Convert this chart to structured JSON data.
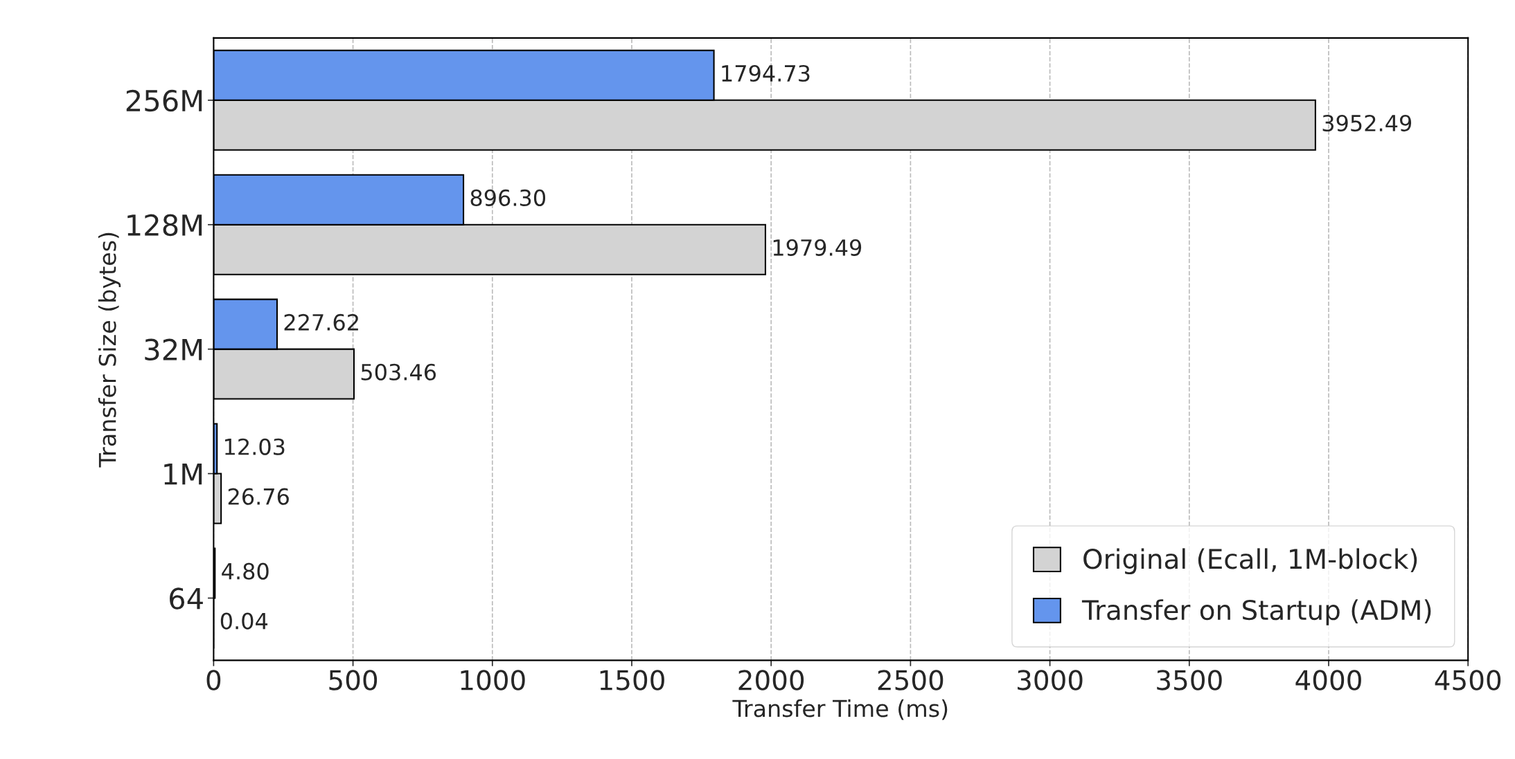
{
  "chart_data": {
    "type": "bar",
    "orientation": "horizontal",
    "xlabel": "Transfer Time (ms)",
    "ylabel": "Transfer Size (bytes)",
    "categories": [
      "256M",
      "128M",
      "32M",
      "1M",
      "64"
    ],
    "series": [
      {
        "name": "Original (Ecall, 1M-block)",
        "color": "#d3d3d3",
        "values": [
          3952.49,
          1979.49,
          503.46,
          26.76,
          0.04
        ],
        "value_labels": [
          "3952.49",
          "1979.49",
          "503.46",
          "26.76",
          "0.04"
        ]
      },
      {
        "name": "Transfer on Startup (ADM)",
        "color": "#6495ed",
        "values": [
          1794.73,
          896.3,
          227.62,
          12.03,
          4.8
        ],
        "value_labels": [
          "1794.73",
          "896.30",
          "227.62",
          "12.03",
          "4.80"
        ]
      }
    ],
    "xlim": [
      0,
      4500
    ],
    "xticks": [
      0,
      500,
      1000,
      1500,
      2000,
      2500,
      3000,
      3500,
      4000,
      4500
    ],
    "grid": "x",
    "legend": "bottom right"
  }
}
